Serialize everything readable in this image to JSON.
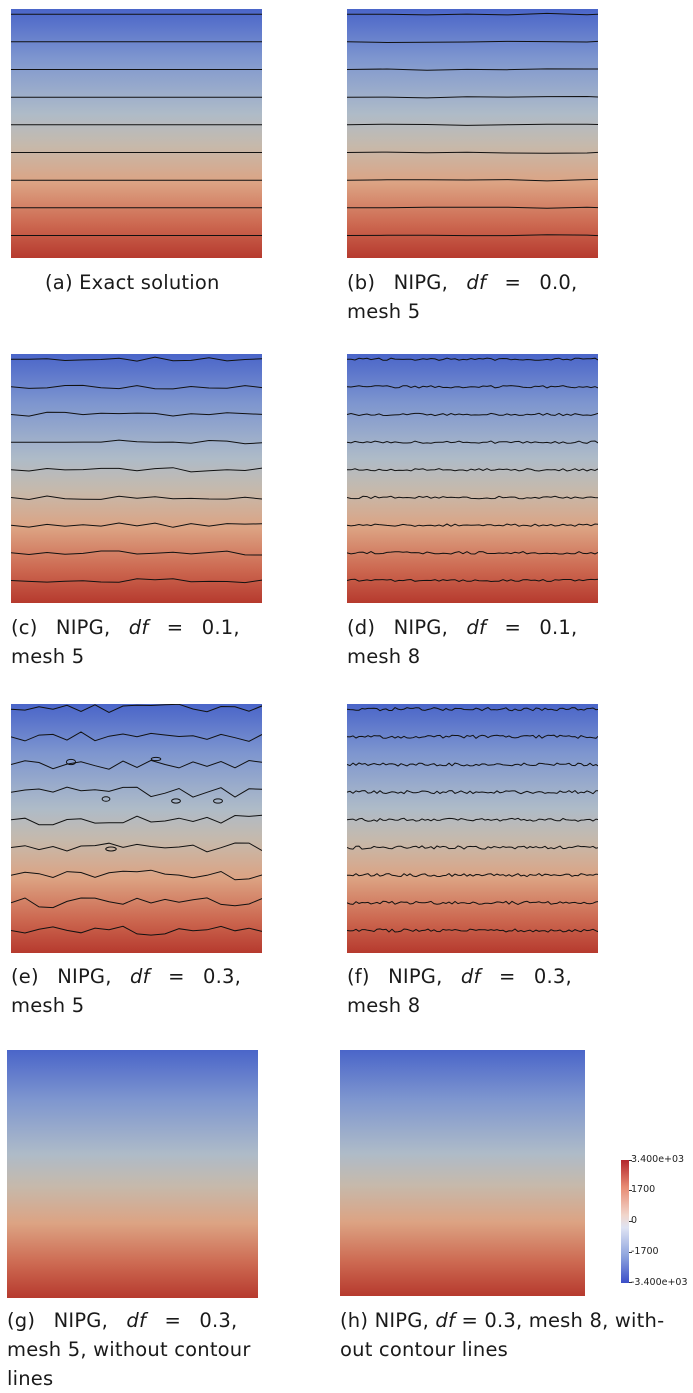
{
  "panels": [
    {
      "id": "a",
      "caption_lines": [
        "(a) Exact solution"
      ],
      "contours": "exact"
    },
    {
      "id": "b",
      "caption_lines": [
        "(b) NIPG, df = 0.0,",
        "mesh 5"
      ],
      "contours": "smooth"
    },
    {
      "id": "c",
      "caption_lines": [
        "(c) NIPG, df = 0.1,",
        "mesh 5"
      ],
      "contours": "wavy-mild"
    },
    {
      "id": "d",
      "caption_lines": [
        "(d) NIPG, df = 0.1,",
        "mesh 8"
      ],
      "contours": "jitter-mild"
    },
    {
      "id": "e",
      "caption_lines": [
        "(e) NIPG, df = 0.3,",
        "mesh 5"
      ],
      "contours": "wavy-strong"
    },
    {
      "id": "f",
      "caption_lines": [
        "(f) NIPG, df = 0.3,",
        "mesh 8"
      ],
      "contours": "jitter-strong"
    },
    {
      "id": "g",
      "caption_lines": [
        "(g) NIPG, df = 0.3,",
        "mesh 5, without contour",
        "lines"
      ],
      "contours": "none"
    },
    {
      "id": "h",
      "caption_lines": [
        "(h) NIPG, df = 0.3, mesh 8, with-",
        "out contour lines"
      ],
      "contours": "none"
    }
  ],
  "colorbar": {
    "labels": [
      "3.400e+03",
      "1700",
      "0",
      "-1700",
      "-3.400e+03"
    ],
    "colors": {
      "top": "#b3262c",
      "mid": "#f1f1f1",
      "bottom": "#3b4ec8"
    }
  }
}
